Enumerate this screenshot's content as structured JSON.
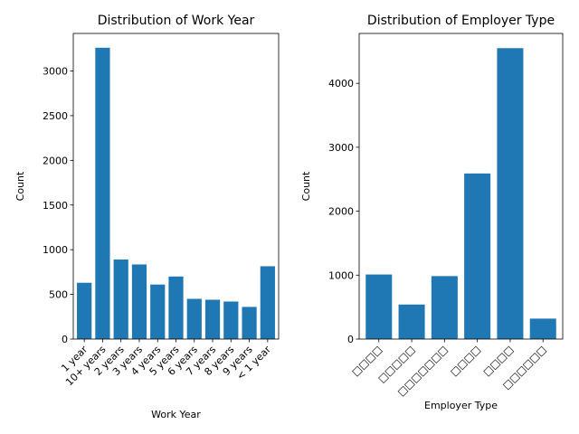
{
  "chart_data": [
    {
      "type": "bar",
      "title": "Distribution of Work Year",
      "xlabel": "Work Year",
      "ylabel": "Count",
      "categories": [
        "1 year",
        "10+ years",
        "2 years",
        "3 years",
        "4 years",
        "5 years",
        "6 years",
        "7 years",
        "8 years",
        "9 years",
        "< 1 year"
      ],
      "values": [
        630,
        3260,
        890,
        835,
        610,
        700,
        450,
        440,
        420,
        360,
        815
      ],
      "ylim": [
        0,
        3420
      ],
      "yticks": [
        0,
        500,
        1000,
        1500,
        2000,
        2500,
        3000
      ],
      "grid": false,
      "color": "#1f77b4"
    },
    {
      "type": "bar",
      "title": "Distribution of Employer Type",
      "xlabel": "Employer Type",
      "ylabel": "Count",
      "categories": [
        "□□□□",
        "□□□□□",
        "□□□□□□□",
        "□□□□",
        "□□□□",
        "□□□□□□"
      ],
      "values": [
        1010,
        540,
        985,
        2590,
        4550,
        320
      ],
      "ylim": [
        0,
        4780
      ],
      "yticks": [
        0,
        1000,
        2000,
        3000,
        4000
      ],
      "grid": false,
      "color": "#1f77b4"
    }
  ]
}
